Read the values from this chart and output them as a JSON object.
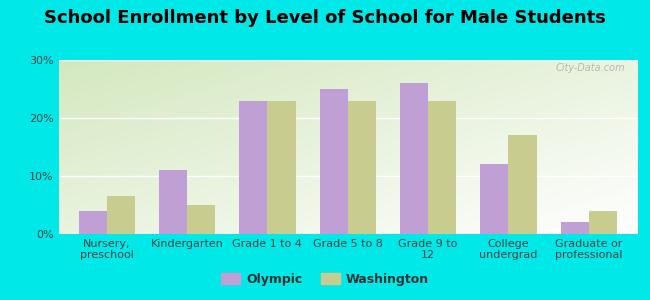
{
  "title": "School Enrollment by Level of School for Male Students",
  "categories": [
    "Nursery,\npreschool",
    "Kindergarten",
    "Grade 1 to 4",
    "Grade 5 to 8",
    "Grade 9 to\n12",
    "College\nundergrad",
    "Graduate or\nprofessional"
  ],
  "olympic_values": [
    4,
    11,
    23,
    25,
    26,
    12,
    2
  ],
  "washington_values": [
    6.5,
    5,
    23,
    23,
    23,
    17,
    4
  ],
  "olympic_color": "#bf9fd4",
  "washington_color": "#c8cc8f",
  "background_color": "#00e8e8",
  "ylim": [
    0,
    30
  ],
  "yticks": [
    0,
    10,
    20,
    30
  ],
  "yticklabels": [
    "0%",
    "10%",
    "20%",
    "30%"
  ],
  "legend_labels": [
    "Olympic",
    "Washington"
  ],
  "title_fontsize": 13,
  "tick_fontsize": 8,
  "legend_fontsize": 9,
  "bar_width": 0.35
}
